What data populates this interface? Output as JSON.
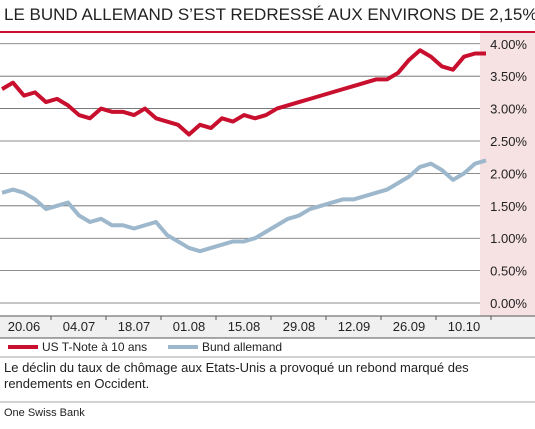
{
  "chart_data": {
    "type": "line",
    "title": "LE BUND ALLEMAND S’EST REDRESSÉ AUX ENVIRONS DE 2,15%",
    "categories": [
      null,
      null,
      "20.06",
      null,
      null,
      null,
      null,
      "04.07",
      null,
      null,
      null,
      null,
      "18.07",
      null,
      null,
      null,
      null,
      "01.08",
      null,
      null,
      null,
      null,
      "15.08",
      null,
      null,
      null,
      null,
      "29.08",
      null,
      null,
      null,
      null,
      "12.09",
      null,
      null,
      null,
      null,
      "26.09",
      null,
      null,
      null,
      null,
      "10.10",
      null,
      null
    ],
    "series": [
      {
        "name": "US T-Note à 10 ans",
        "color": "#c8102e",
        "values": [
          3.3,
          3.4,
          3.2,
          3.25,
          3.1,
          3.15,
          3.05,
          2.9,
          2.85,
          3.0,
          2.95,
          2.95,
          2.9,
          3.0,
          2.85,
          2.8,
          2.75,
          2.6,
          2.75,
          2.7,
          2.85,
          2.8,
          2.9,
          2.85,
          2.9,
          3.0,
          3.05,
          3.1,
          3.15,
          3.2,
          3.25,
          3.3,
          3.35,
          3.4,
          3.45,
          3.45,
          3.55,
          3.75,
          3.9,
          3.8,
          3.65,
          3.6,
          3.8,
          3.85,
          3.85
        ]
      },
      {
        "name": "Bund allemand",
        "color": "#9db8cc",
        "values": [
          1.7,
          1.75,
          1.7,
          1.6,
          1.45,
          1.5,
          1.55,
          1.35,
          1.25,
          1.3,
          1.2,
          1.2,
          1.15,
          1.2,
          1.25,
          1.05,
          0.95,
          0.85,
          0.8,
          0.85,
          0.9,
          0.95,
          0.95,
          1.0,
          1.1,
          1.2,
          1.3,
          1.35,
          1.45,
          1.5,
          1.55,
          1.6,
          1.6,
          1.65,
          1.7,
          1.75,
          1.85,
          1.95,
          2.1,
          2.15,
          2.05,
          1.9,
          2.0,
          2.15,
          2.2
        ]
      }
    ],
    "ylim": [
      -0.2,
      4.2
    ],
    "yticks": [
      {
        "value": 4,
        "label": "4.00%"
      },
      {
        "value": 3.5,
        "label": "3.50%"
      },
      {
        "value": 3,
        "label": "3.00%"
      },
      {
        "value": 2.5,
        "label": "2.50%"
      },
      {
        "value": 2,
        "label": "2.00%"
      },
      {
        "value": 1.5,
        "label": "1.50%"
      },
      {
        "value": 1,
        "label": "1.00%"
      },
      {
        "value": 0.5,
        "label": "0.50%"
      },
      {
        "value": 0,
        "label": "0.00%"
      }
    ],
    "grid": true,
    "caption": "Le déclin du taux de chômage aux Etats-Unis a provoqué un rebond marqué des rendements en Occident.",
    "source": "One Swiss Bank"
  }
}
